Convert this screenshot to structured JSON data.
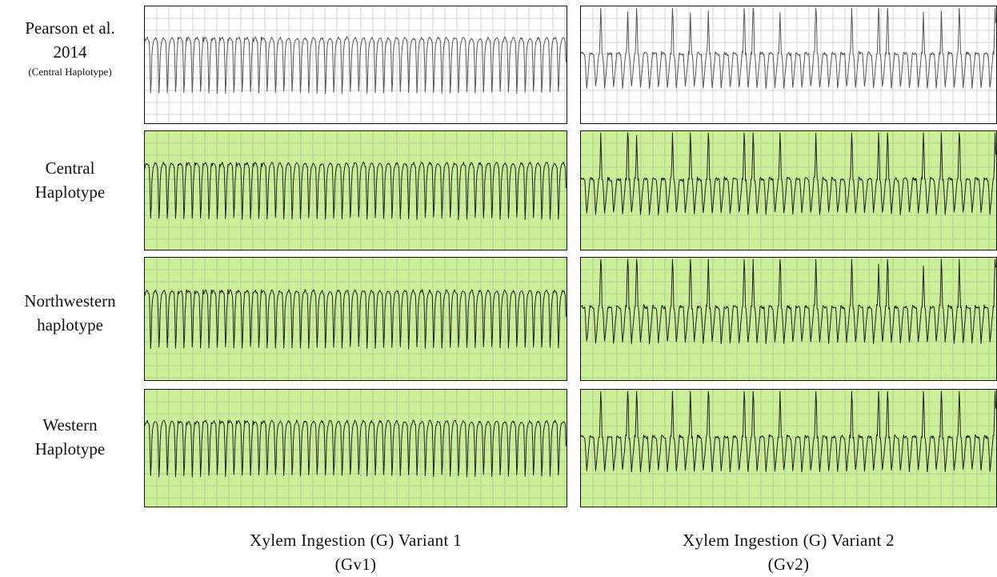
{
  "rows": [
    {
      "lines": [
        "Pearson et al.",
        "2014"
      ],
      "note": "(Central Haplotype)",
      "bg": "#ffffff",
      "grid": "#c8c8c8",
      "trace": "#555555"
    },
    {
      "lines": [
        "Central",
        "Haplotype"
      ],
      "bg": "#ccf09a",
      "grid": "#a9c98a",
      "trace": "#1e1e1e"
    },
    {
      "lines": [
        "Northwestern",
        "haplotype"
      ],
      "bg": "#ccf09a",
      "grid": "#a9c98a",
      "trace": "#1e1e1e"
    },
    {
      "lines": [
        "Western",
        "Haplotype"
      ],
      "bg": "#ccf09a",
      "grid": "#a9c98a",
      "trace": "#1e1e1e"
    }
  ],
  "columns": [
    {
      "label": "Xylem Ingestion (G) Variant 1",
      "abbr": "(Gv1)",
      "waveform": "regular"
    },
    {
      "label": "Xylem Ingestion (G) Variant 2",
      "abbr": "(Gv2)",
      "waveform": "spiked"
    }
  ]
}
